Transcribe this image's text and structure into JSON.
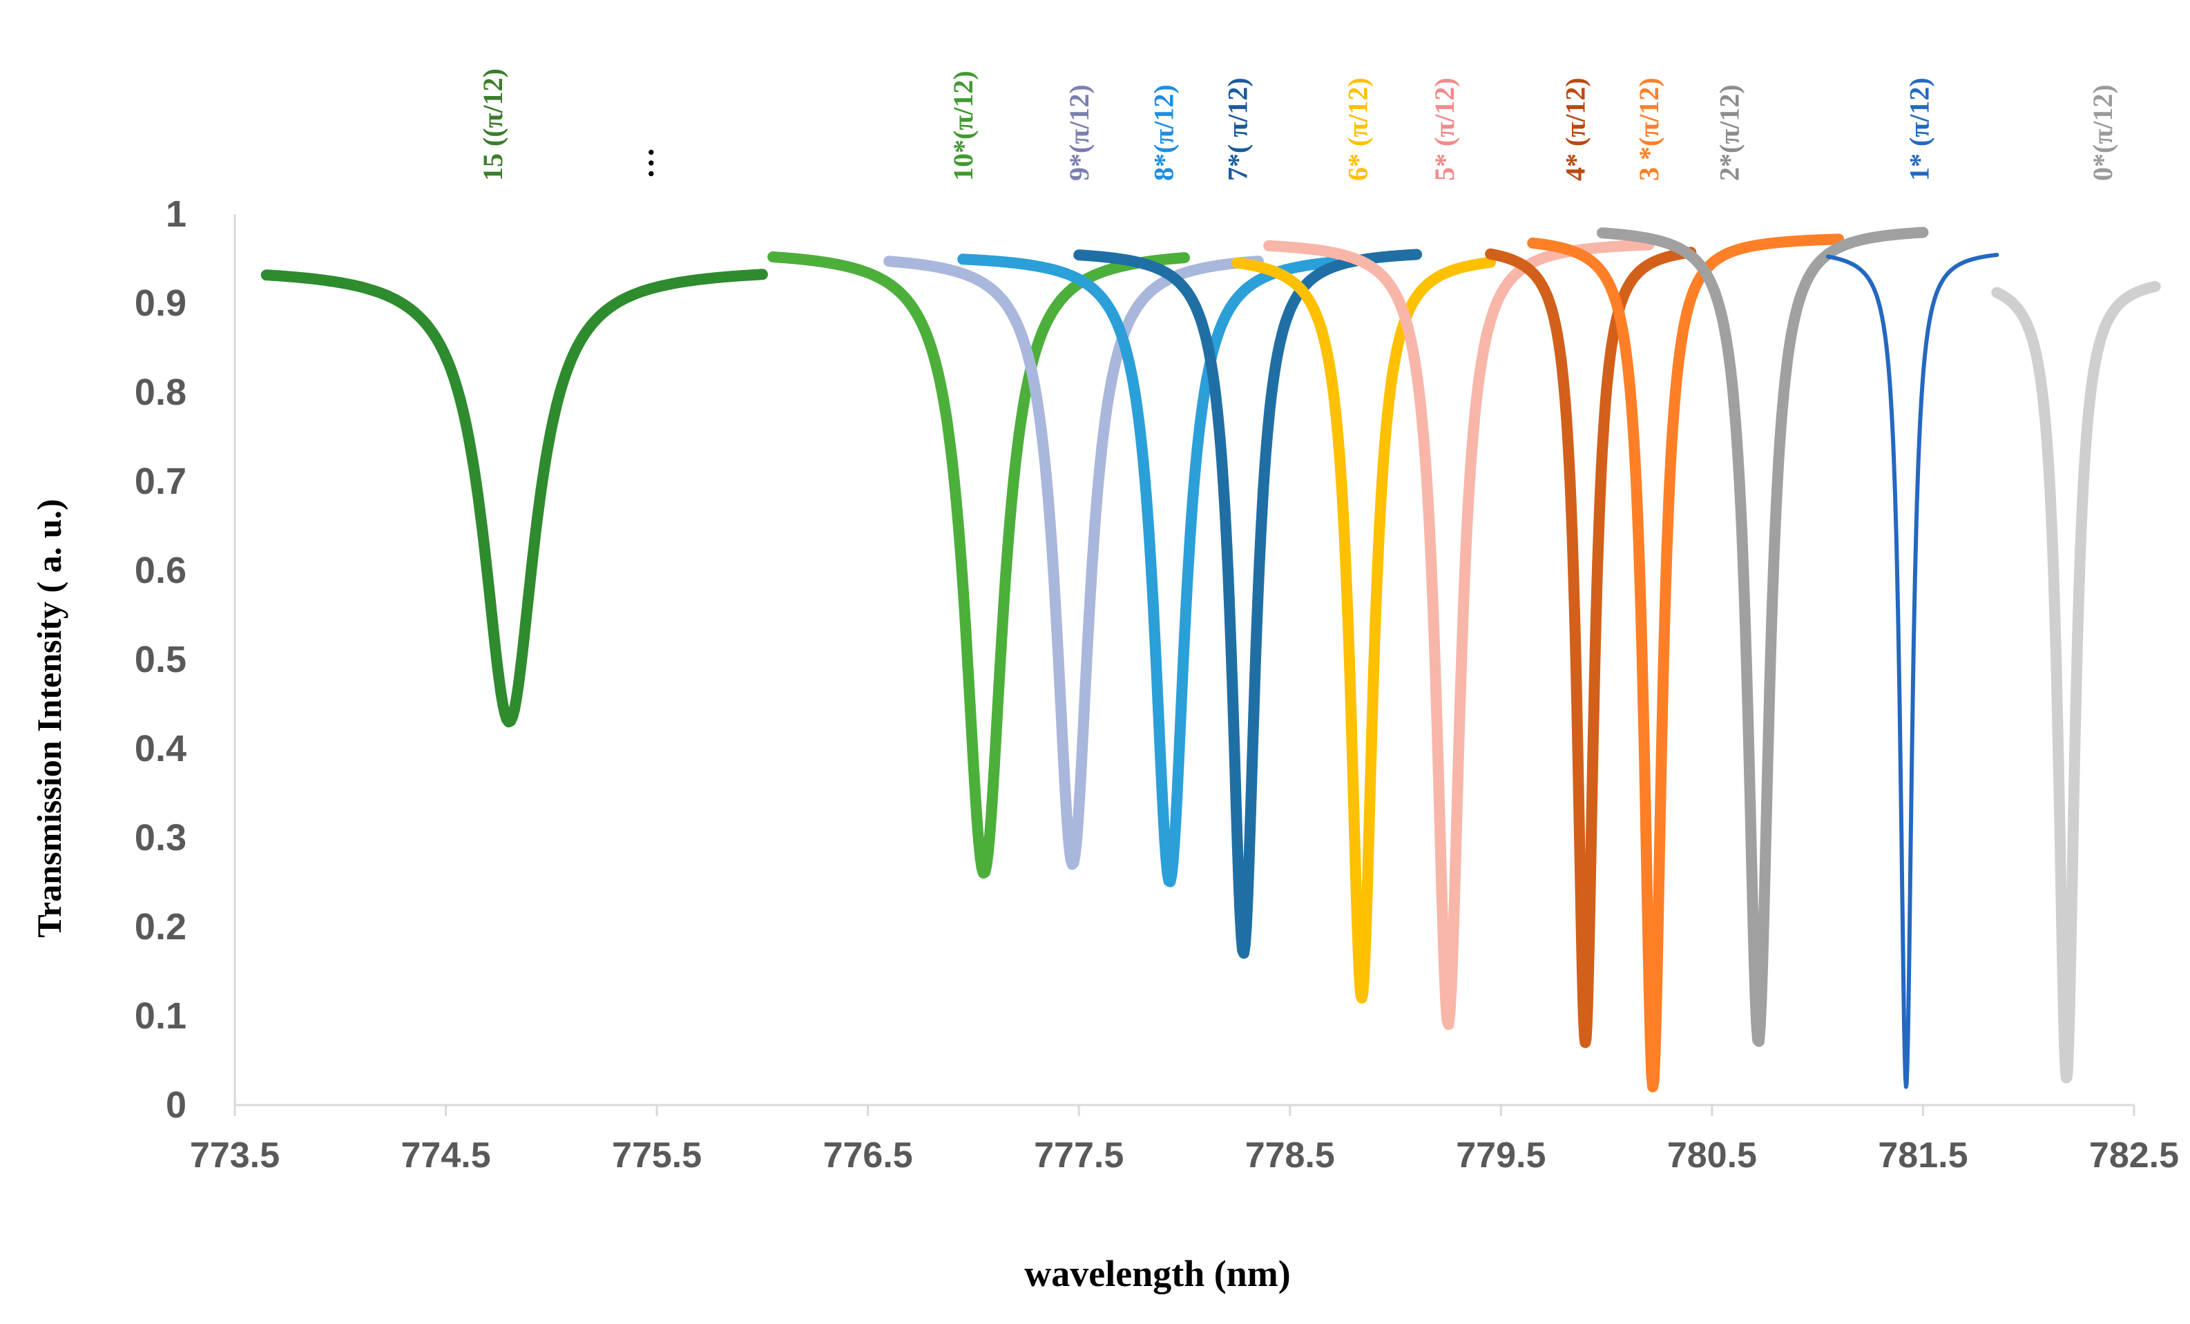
{
  "chart_data": {
    "type": "line",
    "title": "",
    "xlabel": "wavelength  (nm)",
    "ylabel": "Transmission Intensity ( a. u.)",
    "xlim": [
      773.5,
      782.5
    ],
    "ylim": [
      0,
      1
    ],
    "x_ticks": [
      773.5,
      774.5,
      775.5,
      776.5,
      777.5,
      778.5,
      779.5,
      780.5,
      781.5,
      782.5
    ],
    "x_tick_labels": [
      "773.5",
      "774.5",
      "775.5",
      "776.5",
      "777.5",
      "778.5",
      "779.5",
      "780.5",
      "781.5",
      "782.5"
    ],
    "y_ticks": [
      0,
      0.1,
      0.2,
      0.3,
      0.4,
      0.5,
      0.6,
      0.7,
      0.8,
      0.9,
      1
    ],
    "y_tick_labels": [
      "0",
      "0.1",
      "0.2",
      "0.3",
      "0.4",
      "0.5",
      "0.6",
      "0.7",
      "0.8",
      "0.9",
      "1"
    ],
    "ellipsis_label": "…",
    "series": [
      {
        "name": "15 ((π/12)",
        "color": "#2e8b2e",
        "label_color": "#3a7d2a",
        "center": 774.8,
        "min": 0.43,
        "baseline": 0.94,
        "width": 0.22,
        "x_range": [
          773.65,
          776.0
        ],
        "x_peak_label": 774.72
      },
      {
        "name": "10*(π/12)",
        "color": "#4caf3a",
        "label_color": "#3f9a30",
        "center": 777.05,
        "min": 0.26,
        "baseline": 0.96,
        "width": 0.16,
        "x_range": [
          776.05,
          778.0
        ],
        "x_peak_label": 776.95
      },
      {
        "name": "9*(π/12)",
        "color": "#aab7dc",
        "label_color": "#7a7fb0",
        "center": 777.47,
        "min": 0.27,
        "baseline": 0.955,
        "width": 0.14,
        "x_range": [
          776.6,
          778.35
        ],
        "x_peak_label": 777.5
      },
      {
        "name": "8*(π/12)",
        "color": "#2b9fd8",
        "label_color": "#1e8ee0",
        "center": 777.93,
        "min": 0.25,
        "baseline": 0.955,
        "width": 0.13,
        "x_range": [
          776.95,
          778.7
        ],
        "x_peak_label": 777.9
      },
      {
        "name": "7*(  π/12)",
        "color": "#1f6fa5",
        "label_color": "#1a5a9a",
        "center": 778.28,
        "min": 0.17,
        "baseline": 0.96,
        "width": 0.1,
        "x_range": [
          777.5,
          779.1
        ],
        "x_peak_label": 778.25
      },
      {
        "name": "6* (π/12)",
        "color": "#ffc000",
        "label_color": "#ffc000",
        "center": 778.84,
        "min": 0.12,
        "baseline": 0.955,
        "width": 0.095,
        "x_range": [
          778.25,
          779.45
        ],
        "x_peak_label": 778.82
      },
      {
        "name": "5* (π/12)",
        "color": "#f8b6a8",
        "label_color": "#f28a8a",
        "center": 779.25,
        "min": 0.09,
        "baseline": 0.97,
        "width": 0.1,
        "x_range": [
          778.4,
          780.2
        ],
        "x_peak_label": 779.23
      },
      {
        "name": "4* (π/12)",
        "color": "#d2601a",
        "label_color": "#b84a10",
        "center": 779.9,
        "min": 0.07,
        "baseline": 0.965,
        "width": 0.07,
        "x_range": [
          779.45,
          780.4
        ],
        "x_peak_label": 779.85
      },
      {
        "name": "3 *(π/12)",
        "color": "#ff7f27",
        "label_color": "#ff7f27",
        "center": 780.22,
        "min": 0.02,
        "baseline": 0.975,
        "width": 0.075,
        "x_range": [
          779.65,
          781.1
        ],
        "x_peak_label": 780.2
      },
      {
        "name": "2*(π/12)",
        "color": "#a0a0a0",
        "label_color": "#8c8c8c",
        "center": 780.72,
        "min": 0.07,
        "baseline": 0.985,
        "width": 0.09,
        "x_range": [
          779.98,
          781.5
        ],
        "x_peak_label": 780.58
      },
      {
        "name": "1* (π/12)",
        "color": "#2468c0",
        "label_color": "#2468c0",
        "center": 781.42,
        "min": 0.02,
        "baseline": 0.96,
        "width": 0.05,
        "x_range": [
          781.05,
          781.85
        ],
        "x_peak_label": 781.48
      },
      {
        "name": "0*(π/12)",
        "color": "#cfcfcf",
        "label_color": "#9a9a9a",
        "center": 782.18,
        "min": 0.03,
        "baseline": 0.93,
        "width": 0.07,
        "x_range": [
          781.85,
          782.6
        ],
        "x_peak_label": 782.35
      }
    ]
  }
}
